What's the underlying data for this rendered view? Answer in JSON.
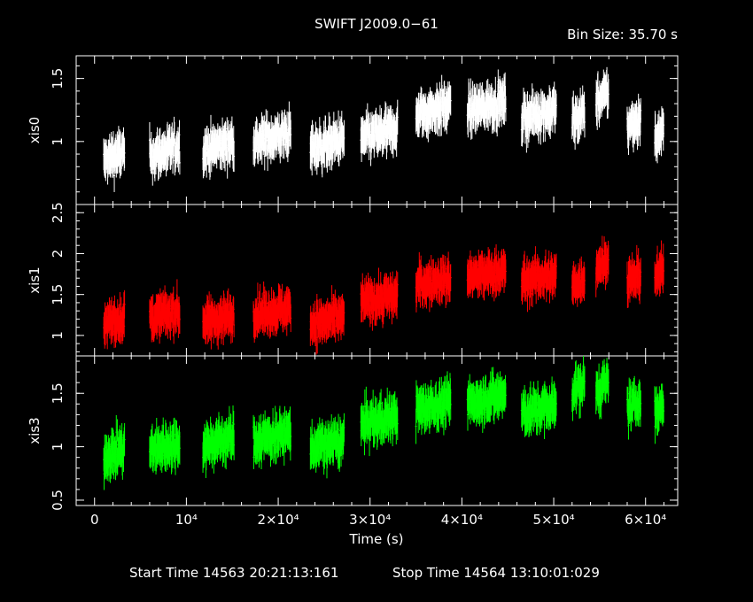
{
  "chart_data": {
    "type": "scatter",
    "title": "SWIFT J2009.0−61",
    "bin_size": "Bin Size: 35.70 s",
    "xlabel": "Time (s)",
    "xlim": [
      -2000,
      63500
    ],
    "x_tick_labels": [
      "0",
      "10⁴",
      "2×10⁴",
      "3×10⁴",
      "4×10⁴",
      "5×10⁴",
      "6×10⁴"
    ],
    "x_ticks": [
      0,
      10000,
      20000,
      30000,
      40000,
      50000,
      60000
    ],
    "start_time": "Start Time 14563 20:21:13:161",
    "stop_time": "Stop Time 14564 13:10:01:029",
    "segments": [
      [
        1000,
        3300
      ],
      [
        6000,
        9300
      ],
      [
        11800,
        15200
      ],
      [
        17300,
        21400
      ],
      [
        23500,
        27200
      ],
      [
        29000,
        33000
      ],
      [
        35000,
        38800
      ],
      [
        40600,
        44800
      ],
      [
        46500,
        50300
      ],
      [
        52000,
        53400
      ],
      [
        54600,
        56000
      ],
      [
        58000,
        59500
      ],
      [
        61000,
        62000
      ]
    ],
    "panels": [
      {
        "ylabel": "xis0",
        "color": "#ffffff",
        "ylim": [
          0.5,
          1.68
        ],
        "y_ticks": [
          1,
          1.5
        ],
        "y_tick_labels": [
          "1",
          "1.5"
        ],
        "levels": [
          0.88,
          0.92,
          0.96,
          1.03,
          0.98,
          1.06,
          1.25,
          1.28,
          1.22,
          1.2,
          1.35,
          1.15,
          1.05
        ],
        "noise": 0.11
      },
      {
        "ylabel": "xis1",
        "color": "#ff0000",
        "ylim": [
          0.75,
          2.6
        ],
        "y_ticks": [
          1,
          1.5,
          2,
          2.5
        ],
        "y_tick_labels": [
          "1",
          "1.5",
          "2",
          "2.5"
        ],
        "levels": [
          1.18,
          1.25,
          1.2,
          1.3,
          1.18,
          1.45,
          1.65,
          1.75,
          1.7,
          1.65,
          1.88,
          1.7,
          1.75
        ],
        "noise": 0.16
      },
      {
        "ylabel": "xis3",
        "color": "#00ff00",
        "ylim": [
          0.45,
          1.85
        ],
        "y_ticks": [
          0.5,
          1,
          1.5
        ],
        "y_tick_labels": [
          "0.5",
          "1",
          "1.5"
        ],
        "levels": [
          0.95,
          1.0,
          1.05,
          1.1,
          1.02,
          1.25,
          1.38,
          1.45,
          1.35,
          1.55,
          1.55,
          1.4,
          1.35
        ],
        "noise": 0.13
      }
    ]
  }
}
